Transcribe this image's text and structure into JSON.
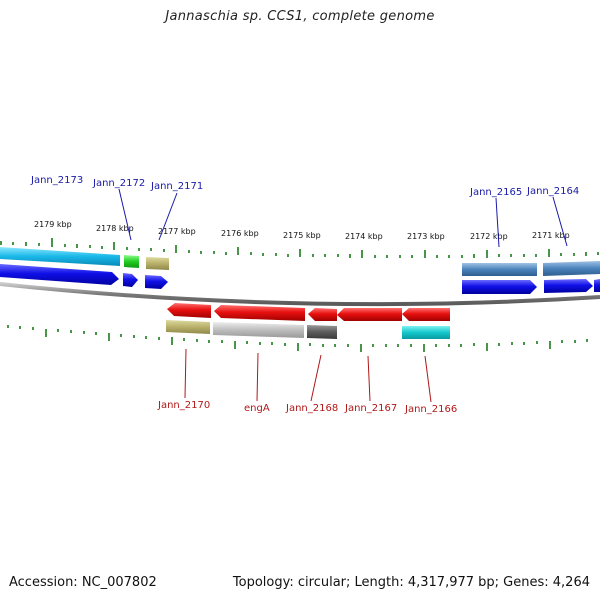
{
  "header": {
    "title": "Jannaschia sp. CCS1, complete genome"
  },
  "footer": {
    "accession": "Accession: NC_007802",
    "summary": "Topology: circular; Length: 4,317,977 bp; Genes: 4,264"
  },
  "scale_labels": [
    "2179 kbp",
    "2178 kbp",
    "2177 kbp",
    "2176 kbp",
    "2175 kbp",
    "2174 kbp",
    "2173 kbp",
    "2172 kbp",
    "2171 kbp"
  ],
  "genes_top": [
    "Jann_2173",
    "Jann_2172",
    "Jann_2171",
    "Jann_2165",
    "Jann_2164"
  ],
  "genes_bottom": [
    "Jann_2170",
    "engA",
    "Jann_2168",
    "Jann_2167",
    "Jann_2166"
  ],
  "colors": {
    "forward_gene": "#1010e0",
    "reverse_gene": "#e01010",
    "backbone": "#808080",
    "tick": "#1a7a1a",
    "label_blue": "#1a1aa8",
    "label_red": "#b01818"
  }
}
